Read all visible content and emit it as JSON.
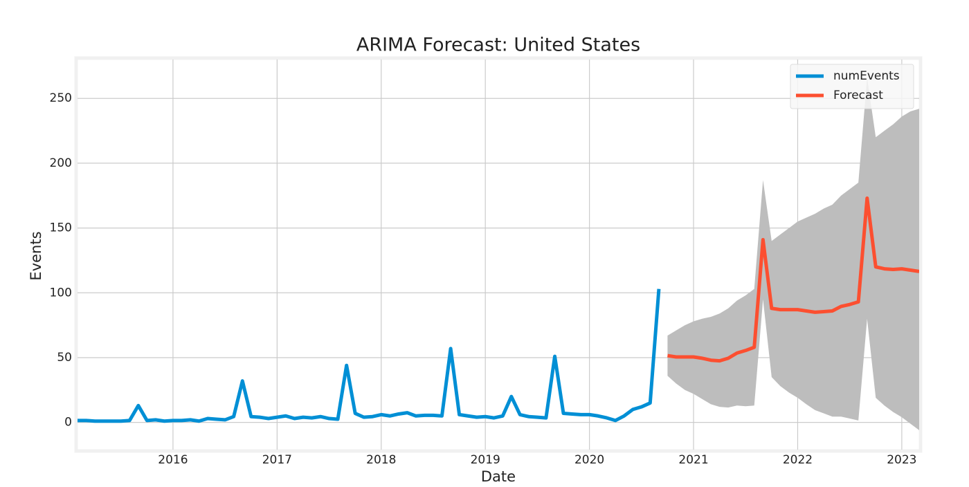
{
  "chart_data": {
    "type": "line",
    "title": "ARIMA Forecast: United States",
    "x_label": "Date",
    "y_label": "Events",
    "xlim": [
      2015.083,
      2023.167
    ],
    "xticks": [
      2016,
      2017,
      2018,
      2019,
      2020,
      2021,
      2022,
      2023
    ],
    "ylim": [
      -21,
      280
    ],
    "yticks": [
      0,
      50,
      100,
      150,
      200,
      250
    ],
    "grid": true,
    "legend": "upper right",
    "series": [
      {
        "name": "numEvents",
        "color": "#008fd5",
        "x": [
          2015.083,
          2015.167,
          2015.25,
          2015.333,
          2015.417,
          2015.5,
          2015.583,
          2015.667,
          2015.75,
          2015.833,
          2015.917,
          2016,
          2016.083,
          2016.167,
          2016.25,
          2016.333,
          2016.417,
          2016.5,
          2016.583,
          2016.667,
          2016.75,
          2016.833,
          2016.917,
          2017,
          2017.083,
          2017.167,
          2017.25,
          2017.333,
          2017.417,
          2017.5,
          2017.583,
          2017.667,
          2017.75,
          2017.833,
          2017.917,
          2018,
          2018.083,
          2018.167,
          2018.25,
          2018.333,
          2018.417,
          2018.5,
          2018.583,
          2018.667,
          2018.75,
          2018.833,
          2018.917,
          2019,
          2019.083,
          2019.167,
          2019.25,
          2019.333,
          2019.417,
          2019.5,
          2019.583,
          2019.667,
          2019.75,
          2019.833,
          2019.917,
          2020,
          2020.083,
          2020.167,
          2020.25,
          2020.333,
          2020.417,
          2020.5,
          2020.583,
          2020.667
        ],
        "values": [
          1.5,
          1.5,
          1,
          1,
          1,
          1,
          1.5,
          13,
          1.5,
          2,
          1,
          1.5,
          1.5,
          2,
          1,
          3,
          2.5,
          2,
          4.5,
          32,
          4.5,
          4,
          3,
          4,
          5,
          3,
          4,
          3.5,
          4.5,
          3,
          2.5,
          44,
          7,
          4,
          4.5,
          6,
          5,
          6.5,
          7.5,
          5,
          5.5,
          5.5,
          5,
          57,
          6,
          5,
          4,
          4.5,
          3.5,
          5,
          20,
          6,
          4.5,
          4,
          3.5,
          51,
          7,
          6.5,
          6,
          6,
          5,
          3.5,
          1.5,
          5,
          10,
          12,
          15,
          103
        ]
      },
      {
        "name": "Forecast",
        "color": "#fc4f30",
        "x": [
          2020.75,
          2020.833,
          2020.917,
          2021,
          2021.083,
          2021.167,
          2021.25,
          2021.333,
          2021.417,
          2021.5,
          2021.583,
          2021.667,
          2021.75,
          2021.833,
          2021.917,
          2022,
          2022.083,
          2022.167,
          2022.25,
          2022.333,
          2022.417,
          2022.5,
          2022.583,
          2022.667,
          2022.75,
          2022.833,
          2022.917,
          2023,
          2023.083,
          2023.167
        ],
        "values": [
          51.5,
          50.5,
          50.5,
          50.5,
          49.5,
          48,
          47.5,
          49.5,
          53.5,
          55.5,
          58,
          141,
          88,
          87,
          87,
          87,
          86,
          85,
          85.5,
          86,
          89.5,
          91,
          93,
          173,
          120,
          118.5,
          118,
          118.5,
          117.5,
          116.5
        ]
      }
    ],
    "band": {
      "color": "#bdbdbd",
      "upper": [
        67,
        71,
        75,
        78,
        80,
        81.5,
        84,
        88,
        94,
        98,
        103,
        187,
        140,
        145,
        150,
        155,
        158,
        161,
        165,
        168,
        175,
        180,
        185,
        266,
        220,
        225,
        230,
        236,
        240,
        242
      ],
      "lower": [
        36,
        30,
        25,
        22,
        18,
        14,
        12,
        11.5,
        13,
        12.5,
        13,
        95,
        35,
        28,
        23,
        19,
        14,
        9.5,
        7,
        4.5,
        4.5,
        3,
        1.5,
        80,
        19,
        13,
        8,
        4,
        -1,
        -6
      ]
    }
  }
}
